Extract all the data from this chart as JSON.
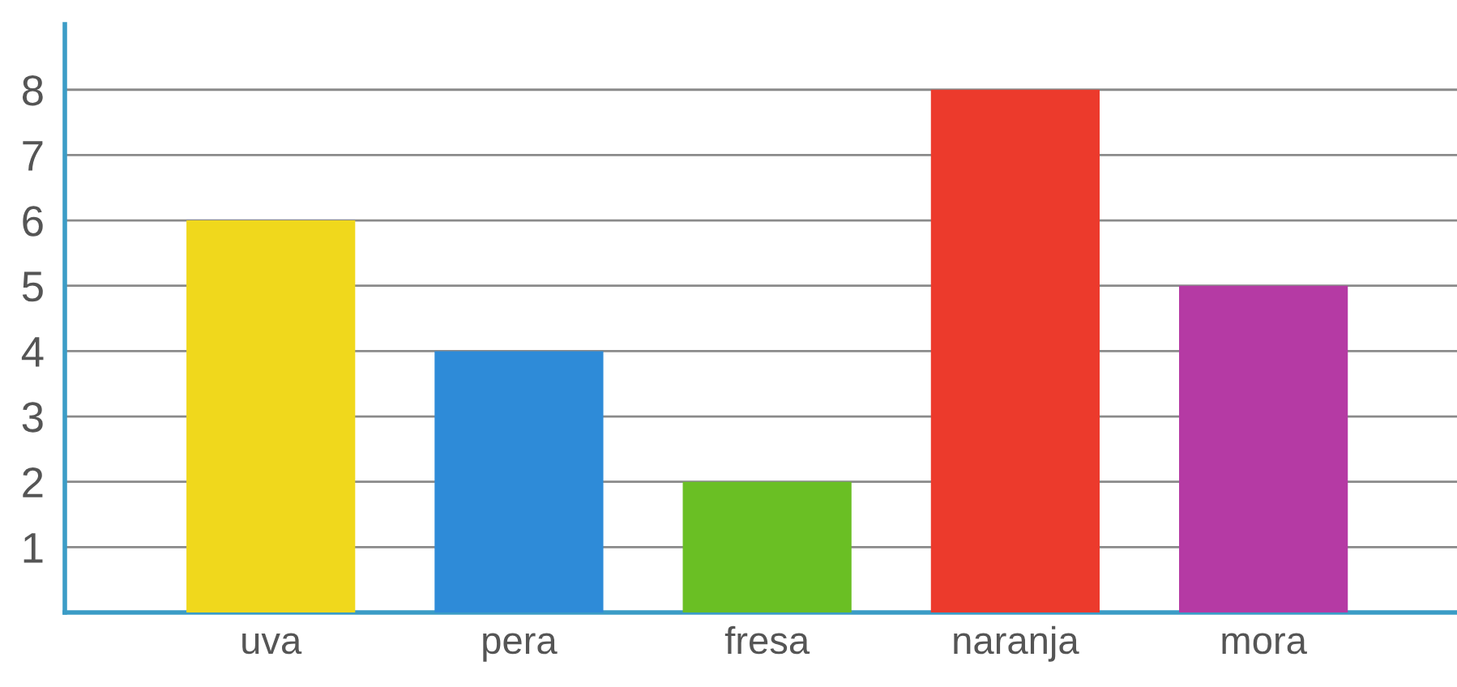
{
  "chart_data": {
    "type": "bar",
    "categories": [
      "uva",
      "pera",
      "fresa",
      "naranja",
      "mora"
    ],
    "values": [
      6,
      4,
      2,
      8,
      5
    ],
    "colors": [
      "#f0d81c",
      "#2e8bd8",
      "#6abf24",
      "#ec3a2c",
      "#b53aa4"
    ],
    "ylim": [
      0,
      9
    ],
    "yticks": [
      1,
      2,
      3,
      4,
      5,
      6,
      7,
      8
    ],
    "grid": "y"
  }
}
